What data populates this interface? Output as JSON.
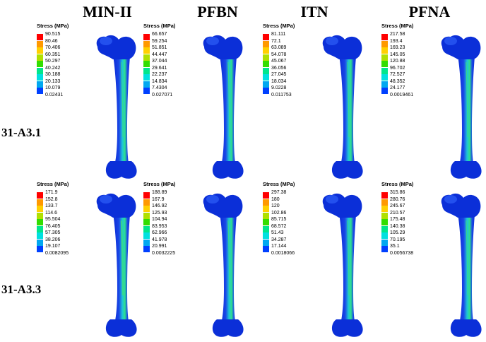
{
  "columns": [
    "MIN-II",
    "PFBN",
    "ITN",
    "PFNA"
  ],
  "rows": [
    "31-A3.1",
    "31-A3.3"
  ],
  "legend_title": "Stress (MPa)",
  "colors": [
    "#ff0000",
    "#ff9900",
    "#ffd000",
    "#b0e000",
    "#33dd00",
    "#00e68c",
    "#00e0e0",
    "#00a8f0",
    "#0040ff"
  ],
  "panels": [
    {
      "column": "MIN-II",
      "row": "31-A3.1",
      "values": [
        "90.515",
        "80.46",
        "70.406",
        "60.351",
        "50.297",
        "40.242",
        "30.188",
        "20.133",
        "10.079",
        "0.02431"
      ]
    },
    {
      "column": "PFBN",
      "row": "31-A3.1",
      "values": [
        "66.657",
        "59.254",
        "51.851",
        "44.447",
        "37.044",
        "29.641",
        "22.237",
        "14.834",
        "7.4304",
        "0.027071"
      ]
    },
    {
      "column": "ITN",
      "row": "31-A3.1",
      "values": [
        "81.111",
        "72.1",
        "63.089",
        "54.078",
        "45.067",
        "36.056",
        "27.045",
        "18.034",
        "9.0228",
        "0.011753"
      ]
    },
    {
      "column": "PFNA",
      "row": "31-A3.1",
      "values": [
        "217.58",
        "193.4",
        "169.23",
        "145.05",
        "120.88",
        "96.702",
        "72.527",
        "48.352",
        "24.177",
        "0.0019461"
      ]
    },
    {
      "column": "MIN-II",
      "row": "31-A3.3",
      "values": [
        "171.9",
        "152.8",
        "133.7",
        "114.6",
        "95.504",
        "76.405",
        "57.305",
        "38.206",
        "19.107",
        "0.0082095"
      ]
    },
    {
      "column": "PFBN",
      "row": "31-A3.3",
      "values": [
        "188.89",
        "167.9",
        "146.92",
        "125.93",
        "104.94",
        "83.953",
        "62.966",
        "41.978",
        "20.991",
        "0.0032225"
      ]
    },
    {
      "column": "ITN",
      "row": "31-A3.3",
      "values": [
        "297.38",
        "180",
        "120",
        "102.86",
        "85.715",
        "68.572",
        "51.43",
        "34.287",
        "17.144",
        "0.0018066"
      ]
    },
    {
      "column": "PFNA",
      "row": "31-A3.3",
      "values": [
        "315.86",
        "280.76",
        "245.67",
        "210.57",
        "175.48",
        "140.38",
        "105.29",
        "70.195",
        "35.1",
        "0.0056738"
      ]
    }
  ]
}
